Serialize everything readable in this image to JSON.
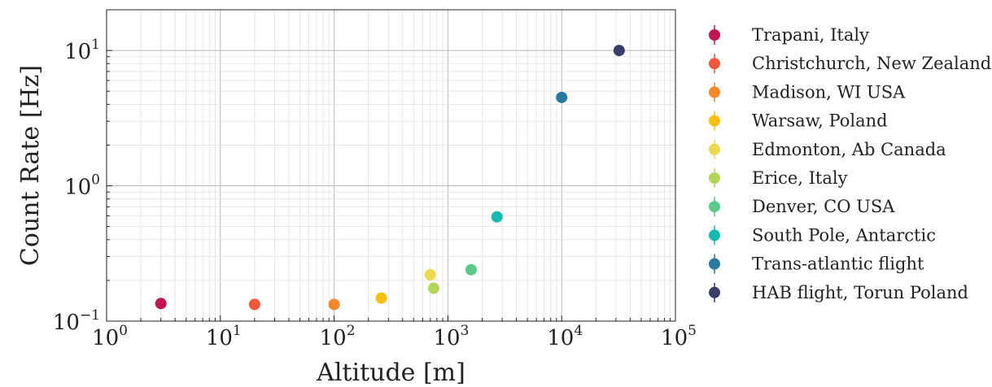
{
  "chart_data": {
    "type": "scatter",
    "title": "",
    "xlabel": "Altitude [m]",
    "ylabel": "Count Rate [Hz]",
    "xscale": "log",
    "yscale": "log",
    "xlim": [
      1,
      100000
    ],
    "ylim": [
      0.1,
      20
    ],
    "grid": true,
    "legend_position": "outside-right",
    "x_ticks": [
      {
        "value": 1,
        "base": "10",
        "exp": "0"
      },
      {
        "value": 10,
        "base": "10",
        "exp": "1"
      },
      {
        "value": 100,
        "base": "10",
        "exp": "2"
      },
      {
        "value": 1000,
        "base": "10",
        "exp": "3"
      },
      {
        "value": 10000,
        "base": "10",
        "exp": "4"
      },
      {
        "value": 100000,
        "base": "10",
        "exp": "5"
      }
    ],
    "y_ticks": [
      {
        "value": 0.1,
        "base": "10",
        "exp": "−1"
      },
      {
        "value": 1,
        "base": "10",
        "exp": "0"
      },
      {
        "value": 10,
        "base": "10",
        "exp": "1"
      }
    ],
    "series": [
      {
        "name": "Trapani, Italy",
        "color": "#c2144d",
        "x": 3,
        "y": 0.135
      },
      {
        "name": "Christchurch, New Zealand",
        "color": "#f5573a",
        "x": 20,
        "y": 0.133
      },
      {
        "name": "Madison, WI USA",
        "color": "#f7872c",
        "x": 100,
        "y": 0.133
      },
      {
        "name": "Warsaw, Poland",
        "color": "#fbbf10",
        "x": 260,
        "y": 0.148
      },
      {
        "name": "Edmonton, Ab Canada",
        "color": "#ecd94f",
        "x": 700,
        "y": 0.22
      },
      {
        "name": "Erice, Italy",
        "color": "#b2d65a",
        "x": 750,
        "y": 0.175
      },
      {
        "name": "Denver, CO USA",
        "color": "#5bc98a",
        "x": 1600,
        "y": 0.24
      },
      {
        "name": "South Pole, Antarctic",
        "color": "#14bab0",
        "x": 2700,
        "y": 0.59
      },
      {
        "name": "Trans-atlantic flight",
        "color": "#2779a0",
        "x": 10000,
        "y": 4.5
      },
      {
        "name": "HAB flight, Torun Poland",
        "color": "#3a3c69",
        "x": 32000,
        "y": 10
      }
    ]
  }
}
